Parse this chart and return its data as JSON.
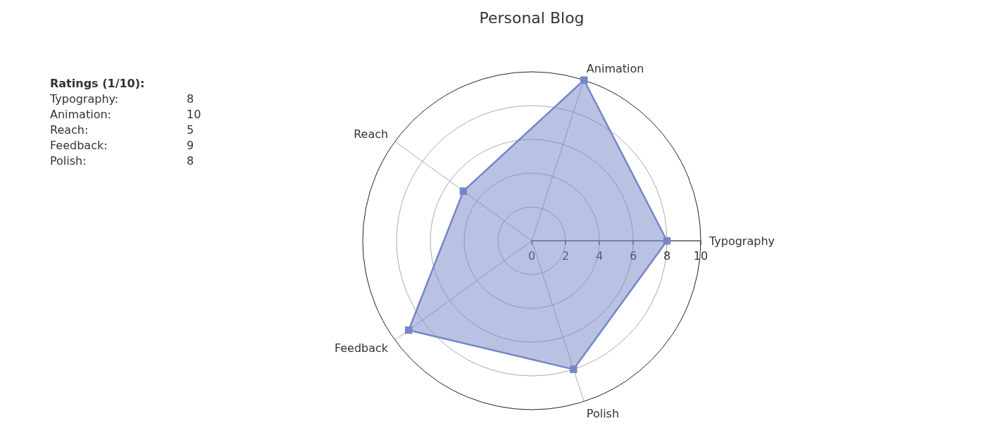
{
  "chart_data": {
    "type": "radar",
    "title": "Personal Blog",
    "categories": [
      "Animation",
      "Typography",
      "Polish",
      "Feedback",
      "Reach"
    ],
    "series": [
      {
        "color": "#7586c8",
        "values": [
          10,
          8,
          8,
          9,
          5
        ]
      }
    ],
    "ylim": [
      0,
      10
    ],
    "yticks": [
      0,
      2,
      4,
      6,
      8,
      10
    ],
    "marker": "square",
    "grid": true,
    "legend": false,
    "annotations": [
      "Ratings (1/10):",
      "Typography:\t8",
      "Animation:\t10",
      "Reach:\t5",
      "Feedback:\t9",
      "Polish:\t8"
    ]
  }
}
